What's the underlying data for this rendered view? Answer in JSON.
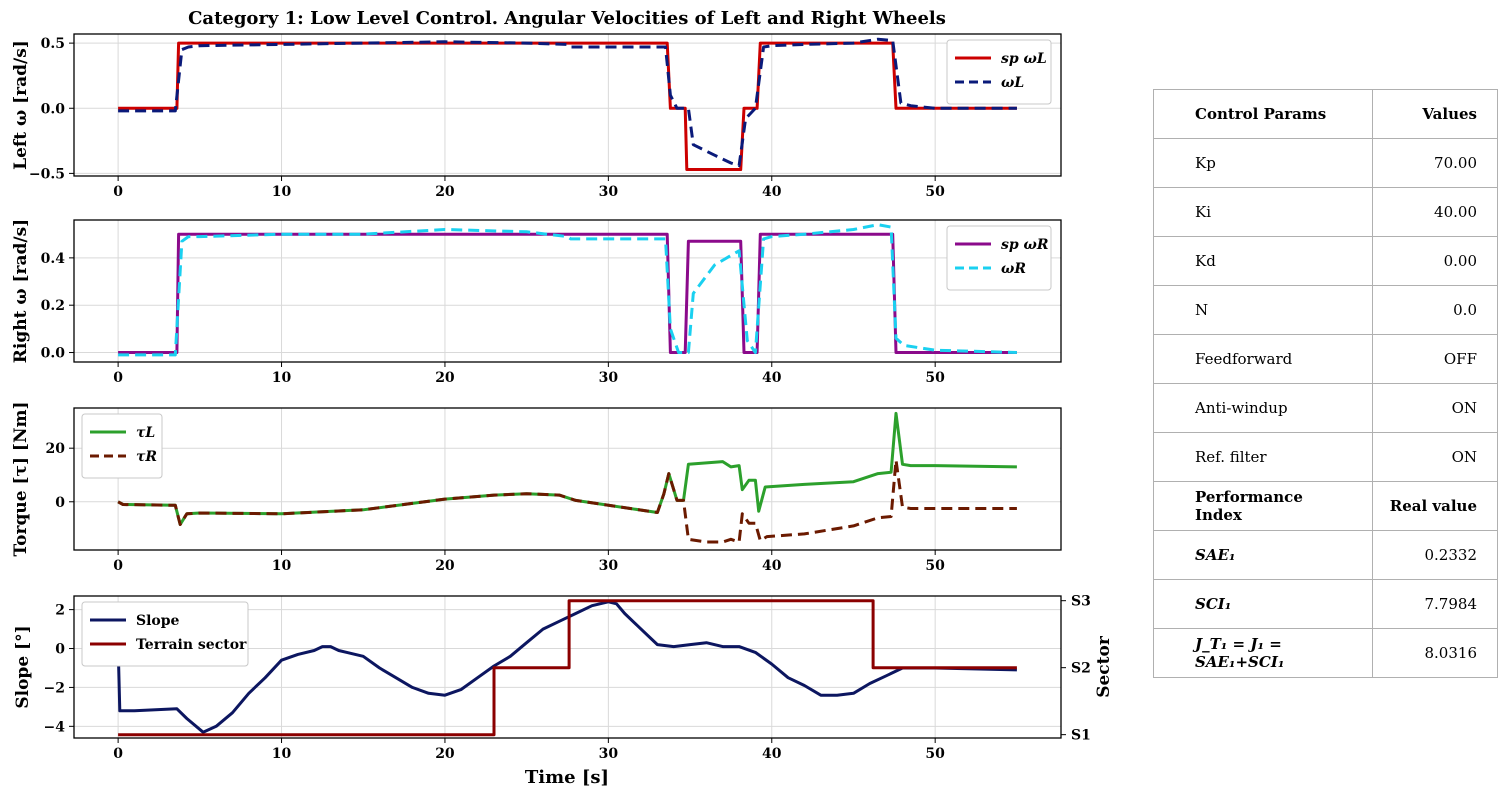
{
  "title": "Category 1: Low Level Control. Angular Velocities of Left and Right Wheels",
  "xlabel": "Time [s]",
  "chart_data": [
    {
      "type": "line",
      "ylabel": "Left ω [rad/s]",
      "xlim": [
        -2.7,
        57.7
      ],
      "ylim": [
        -0.52,
        0.57
      ],
      "xticks": [
        0,
        10,
        20,
        30,
        40,
        50
      ],
      "yticks": [
        -0.5,
        0.0,
        0.5
      ],
      "ytick_labels": [
        "−0.5",
        "0.0",
        "0.5"
      ],
      "grid": true,
      "legend": "top-right",
      "series": [
        {
          "name": "sp ωL",
          "color": "#cc0000",
          "dash": "solid",
          "x": [
            0,
            3.6,
            3.7,
            33.6,
            33.8,
            34.7,
            34.8,
            38.1,
            38.3,
            39.1,
            39.3,
            47.4,
            47.6,
            55
          ],
          "y": [
            0,
            0,
            0.5,
            0.5,
            0,
            0,
            -0.47,
            -0.47,
            0,
            0,
            0.5,
            0.5,
            0,
            0
          ]
        },
        {
          "name": "ωL",
          "color": "#0a1a7a",
          "dash": "dashed",
          "x": [
            0,
            3.5,
            3.9,
            4.3,
            5,
            10,
            15,
            20,
            25,
            27.5,
            27.7,
            33.5,
            33.8,
            34.2,
            34.9,
            35.2,
            36.5,
            37.5,
            38,
            38.4,
            39,
            39.5,
            40,
            42,
            45,
            46.5,
            47.4,
            47.9,
            48.5,
            50,
            55
          ],
          "y": [
            -0.02,
            -0.02,
            0.45,
            0.47,
            0.48,
            0.49,
            0.5,
            0.51,
            0.5,
            0.49,
            0.47,
            0.47,
            0.1,
            0.0,
            0.0,
            -0.28,
            -0.36,
            -0.42,
            -0.44,
            -0.08,
            0.0,
            0.47,
            0.48,
            0.49,
            0.5,
            0.53,
            0.52,
            0.04,
            0.02,
            0.0,
            0.0
          ]
        }
      ]
    },
    {
      "type": "line",
      "ylabel": "Right ω [rad/s]",
      "xlim": [
        -2.7,
        57.7
      ],
      "ylim": [
        -0.04,
        0.56
      ],
      "xticks": [
        0,
        10,
        20,
        30,
        40,
        50
      ],
      "yticks": [
        0.0,
        0.2,
        0.4
      ],
      "ytick_labels": [
        "0.0",
        "0.2",
        "0.4"
      ],
      "grid": true,
      "legend": "top-right",
      "series": [
        {
          "name": "sp ωR",
          "color": "#8b0a8b",
          "dash": "solid",
          "x": [
            0,
            3.6,
            3.7,
            33.6,
            33.8,
            34.7,
            34.9,
            38.1,
            38.3,
            39.1,
            39.3,
            47.4,
            47.6,
            55
          ],
          "y": [
            0,
            0,
            0.5,
            0.5,
            0,
            0,
            0.47,
            0.47,
            0,
            0,
            0.5,
            0.5,
            0,
            0
          ]
        },
        {
          "name": "ωR",
          "color": "#1ad0f0",
          "dash": "dashed",
          "x": [
            0,
            3.5,
            3.9,
            4.3,
            5,
            10,
            15,
            20,
            25,
            27.5,
            27.7,
            33.5,
            33.8,
            34.3,
            34.9,
            35.2,
            36.5,
            37.5,
            38,
            38.5,
            39,
            39.5,
            40,
            42,
            45,
            46.5,
            47.3,
            47.6,
            48.1,
            50,
            55
          ],
          "y": [
            -0.01,
            -0.01,
            0.47,
            0.49,
            0.49,
            0.5,
            0.5,
            0.52,
            0.51,
            0.49,
            0.48,
            0.48,
            0.1,
            0.0,
            0.0,
            0.25,
            0.37,
            0.41,
            0.43,
            0.05,
            0.0,
            0.48,
            0.49,
            0.5,
            0.52,
            0.54,
            0.53,
            0.06,
            0.03,
            0.01,
            0.0
          ]
        }
      ]
    },
    {
      "type": "line",
      "ylabel": "Torque [τ] [Nm]",
      "xlim": [
        -2.7,
        57.7
      ],
      "ylim": [
        -18,
        35
      ],
      "xticks": [
        0,
        10,
        20,
        30,
        40,
        50
      ],
      "yticks": [
        0,
        20
      ],
      "ytick_labels": [
        "0",
        "20"
      ],
      "grid": true,
      "legend": "top-left",
      "series": [
        {
          "name": "τL",
          "color": "#2ca02c",
          "dash": "solid",
          "x": [
            0,
            0.3,
            3.5,
            3.8,
            4.2,
            5,
            10,
            15,
            20,
            23,
            25,
            27,
            28,
            33,
            33.4,
            33.7,
            34.2,
            34.6,
            34.9,
            36,
            37,
            37.5,
            38,
            38.2,
            38.6,
            39,
            39.2,
            39.6,
            42,
            45,
            46.5,
            47.3,
            47.6,
            48,
            48.5,
            50,
            55
          ],
          "y": [
            0,
            -1,
            -1.3,
            -8.5,
            -4.5,
            -4.2,
            -4.5,
            -3,
            1,
            2.5,
            3,
            2.5,
            0.5,
            -4,
            3,
            10.5,
            0.5,
            0.5,
            14,
            14.5,
            15,
            13,
            13.5,
            4.5,
            8,
            8,
            -3.5,
            5.5,
            6.5,
            7.5,
            10.5,
            11,
            33,
            14,
            13.5,
            13.5,
            13
          ]
        },
        {
          "name": "τR",
          "color": "#6b1a00",
          "dash": "dashed",
          "x": [
            0,
            0.3,
            3.5,
            3.8,
            4.2,
            5,
            10,
            15,
            20,
            23,
            25,
            27,
            28,
            33,
            33.4,
            33.7,
            34.2,
            34.6,
            34.9,
            36,
            37,
            37.5,
            38,
            38.2,
            38.6,
            39,
            39.3,
            39.7,
            42,
            45,
            46.5,
            47.3,
            47.6,
            48,
            48.5,
            50,
            55
          ],
          "y": [
            0,
            -1,
            -1.3,
            -8.5,
            -4.5,
            -4.2,
            -4.5,
            -3,
            1,
            2.5,
            3,
            2.5,
            0.5,
            -4,
            3,
            10.5,
            0.5,
            0.5,
            -14,
            -15,
            -15,
            -14,
            -15,
            -4.5,
            -8,
            -8,
            -14.5,
            -13,
            -12,
            -9,
            -6,
            -5.5,
            15.5,
            -2,
            -2.5,
            -2.5,
            -2.5
          ]
        }
      ]
    },
    {
      "type": "line",
      "ylabel": "Slope [°]",
      "y2label": "Sector",
      "xlim": [
        -2.7,
        57.7
      ],
      "ylim": [
        -4.6,
        2.7
      ],
      "y2lim": [
        0.95,
        3.07
      ],
      "xticks": [
        0,
        10,
        20,
        30,
        40,
        50
      ],
      "yticks": [
        -4,
        -2,
        0,
        2
      ],
      "ytick_labels": [
        "−4",
        "−2",
        "0",
        "2"
      ],
      "y2ticks": [
        1,
        2,
        3
      ],
      "y2tick_labels": [
        "S1",
        "S2",
        "S3"
      ],
      "grid": true,
      "legend": "top-left",
      "series": [
        {
          "name": "Slope",
          "color": "#0c1660",
          "dash": "solid",
          "axis": "left",
          "x": [
            0,
            0.1,
            1,
            3.6,
            4.2,
            5.2,
            6,
            7,
            8,
            9,
            10,
            11,
            12,
            12.5,
            13,
            13.5,
            14,
            15,
            16,
            17,
            18,
            19,
            20,
            21,
            22,
            23,
            24,
            25,
            26,
            27,
            28,
            29,
            30,
            30.5,
            31,
            32,
            33,
            34,
            35,
            36,
            37,
            38,
            39,
            40,
            41,
            42,
            43,
            44,
            45,
            46,
            47,
            48,
            50,
            55
          ],
          "y": [
            0.2,
            -3.2,
            -3.2,
            -3.1,
            -3.6,
            -4.3,
            -4.0,
            -3.3,
            -2.3,
            -1.5,
            -0.6,
            -0.3,
            -0.1,
            0.1,
            0.1,
            -0.1,
            -0.2,
            -0.4,
            -1.0,
            -1.5,
            -2.0,
            -2.3,
            -2.4,
            -2.1,
            -1.5,
            -0.9,
            -0.4,
            0.3,
            1.0,
            1.4,
            1.8,
            2.2,
            2.4,
            2.3,
            1.8,
            1.0,
            0.2,
            0.1,
            0.2,
            0.3,
            0.1,
            0.1,
            -0.2,
            -0.8,
            -1.5,
            -1.9,
            -2.4,
            -2.4,
            -2.3,
            -1.8,
            -1.4,
            -1.0,
            -1.0,
            -1.1
          ]
        },
        {
          "name": "Terrain sector",
          "color": "#8b0000",
          "dash": "solid",
          "axis": "right",
          "x": [
            0,
            23,
            23,
            27.6,
            27.6,
            46.2,
            46.2,
            55
          ],
          "y": [
            1,
            1,
            2,
            2,
            3,
            3,
            2,
            2
          ]
        }
      ]
    }
  ],
  "table": {
    "rows": [
      {
        "key": "Control Params",
        "value": "Values",
        "style": "head"
      },
      {
        "key": "Kp",
        "value": "70.00",
        "style": ""
      },
      {
        "key": "Ki",
        "value": "40.00",
        "style": ""
      },
      {
        "key": "Kd",
        "value": "0.00",
        "style": ""
      },
      {
        "key": "N",
        "value": "0.0",
        "style": ""
      },
      {
        "key": "Feedforward",
        "value": "OFF",
        "style": ""
      },
      {
        "key": "Anti-windup",
        "value": "ON",
        "style": ""
      },
      {
        "key": "Ref. filter",
        "value": "ON",
        "style": ""
      },
      {
        "key": "Performance Index",
        "value": "Real value",
        "style": "head"
      },
      {
        "key": "SAE₁",
        "value": "0.2332",
        "style": "it"
      },
      {
        "key": "SCI₁",
        "value": "7.7984",
        "style": "it"
      },
      {
        "key": "J_T₁ = J₁ = SAE₁+SCI₁",
        "value": "8.0316",
        "style": "it"
      }
    ]
  }
}
